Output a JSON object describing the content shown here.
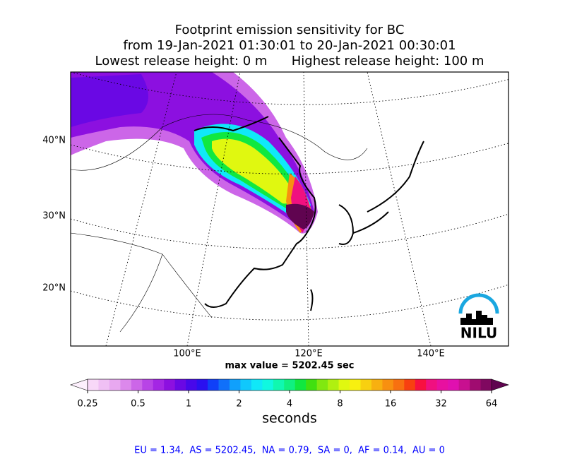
{
  "title_lines": [
    "Footprint emission sensitivity for BC",
    "from 19-Jan-2021 01:30:01 to 20-Jan-2021 00:30:01",
    "Lowest release height: 0 m      Highest release height: 100 m"
  ],
  "map": {
    "lat_labels": [
      "40°N",
      "30°N",
      "20°N"
    ],
    "lon_labels": [
      "100°E",
      "120°E",
      "140°E"
    ],
    "logo": "NILU"
  },
  "max_value_text": "max value = 5202.45 sec",
  "colorbar": {
    "label": "seconds",
    "log": true,
    "lim": [
      0.25,
      64
    ],
    "ticks": [
      0.25,
      0.5,
      1,
      2,
      4,
      8,
      16,
      32,
      64
    ],
    "colors": [
      "#fdf0fd",
      "#f8d8f8",
      "#f0c0f4",
      "#e8a8f0",
      "#dc88ec",
      "#cc66e8",
      "#b844e6",
      "#a426e4",
      "#8c10e0",
      "#6a08e4",
      "#4808ea",
      "#2a10f0",
      "#1040f8",
      "#1070fa",
      "#10a0fc",
      "#10c8fc",
      "#10e8f8",
      "#10f8e0",
      "#10f8b0",
      "#10f080",
      "#10e840",
      "#40e010",
      "#80e810",
      "#b0f010",
      "#e0f810",
      "#f8f010",
      "#f8d010",
      "#f8b010",
      "#f89010",
      "#f87010",
      "#f84010",
      "#f81040",
      "#f01080",
      "#e810a0",
      "#e010b0",
      "#c81090",
      "#a00c70",
      "#800860",
      "#600450"
    ]
  },
  "stats_text": "EU = 1.34,  AS = 5202.45,  NA = 0.79,  SA = 0,  AF = 0.14,  AU = 0"
}
